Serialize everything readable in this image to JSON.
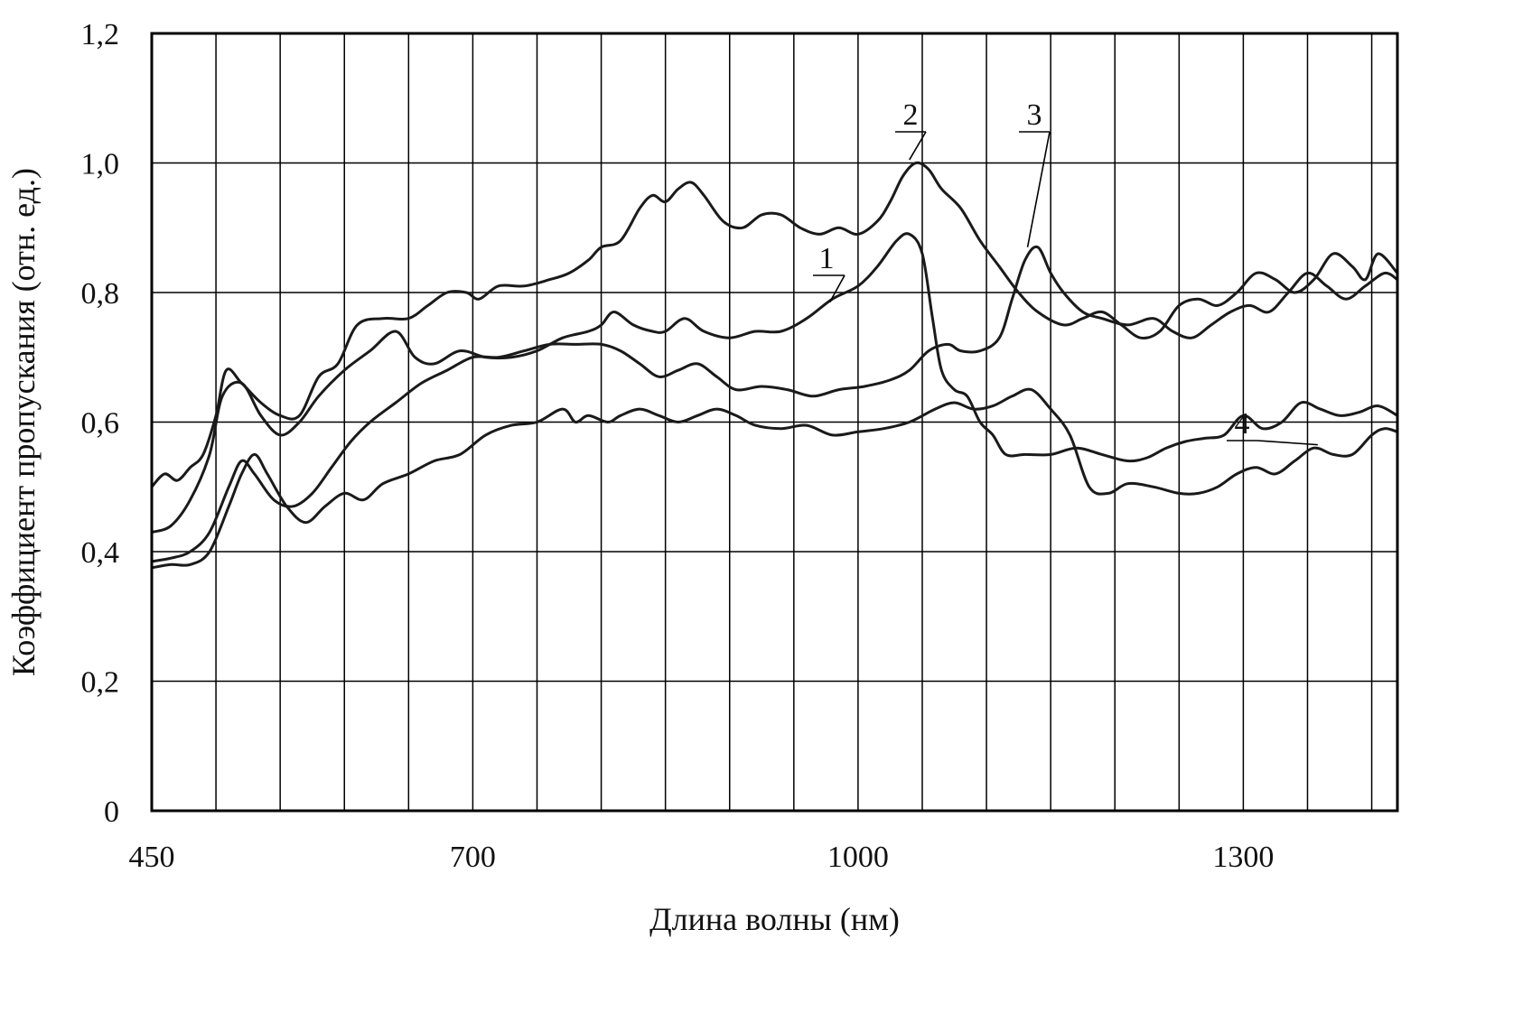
{
  "chart_data": {
    "type": "line",
    "title": "",
    "xlabel": "Длина волны (нм)",
    "ylabel": "Коэффициент пропускания (отн. ед.)",
    "xlim": [
      450,
      1420
    ],
    "ylim": [
      0,
      1.2
    ],
    "x_ticks": [
      450,
      700,
      1000,
      1300
    ],
    "x_tick_labels": [
      "450",
      "700",
      "1000",
      "1300"
    ],
    "x_grid": [
      450,
      500,
      550,
      600,
      650,
      700,
      750,
      800,
      850,
      900,
      950,
      1000,
      1050,
      1100,
      1150,
      1200,
      1250,
      1300,
      1350,
      1400
    ],
    "y_ticks": [
      0,
      0.2,
      0.4,
      0.6,
      0.8,
      1.0,
      1.2
    ],
    "y_tick_labels": [
      "0",
      "0,2",
      "0,4",
      "0,6",
      "0,8",
      "1,0",
      "1,2"
    ],
    "grid": true,
    "legend": "none",
    "series": [
      {
        "name": "1",
        "points": [
          [
            450,
            0.43
          ],
          [
            465,
            0.44
          ],
          [
            480,
            0.48
          ],
          [
            495,
            0.55
          ],
          [
            505,
            0.64
          ],
          [
            520,
            0.66
          ],
          [
            535,
            0.61
          ],
          [
            550,
            0.58
          ],
          [
            565,
            0.6
          ],
          [
            580,
            0.64
          ],
          [
            600,
            0.68
          ],
          [
            620,
            0.71
          ],
          [
            640,
            0.74
          ],
          [
            655,
            0.7
          ],
          [
            670,
            0.69
          ],
          [
            690,
            0.71
          ],
          [
            710,
            0.7
          ],
          [
            730,
            0.7
          ],
          [
            750,
            0.71
          ],
          [
            770,
            0.73
          ],
          [
            790,
            0.74
          ],
          [
            800,
            0.75
          ],
          [
            810,
            0.77
          ],
          [
            825,
            0.75
          ],
          [
            840,
            0.74
          ],
          [
            850,
            0.74
          ],
          [
            865,
            0.76
          ],
          [
            880,
            0.74
          ],
          [
            900,
            0.73
          ],
          [
            920,
            0.74
          ],
          [
            940,
            0.74
          ],
          [
            960,
            0.76
          ],
          [
            980,
            0.79
          ],
          [
            1000,
            0.81
          ],
          [
            1015,
            0.84
          ],
          [
            1030,
            0.88
          ],
          [
            1040,
            0.89
          ],
          [
            1050,
            0.86
          ],
          [
            1058,
            0.76
          ],
          [
            1065,
            0.68
          ],
          [
            1075,
            0.65
          ],
          [
            1085,
            0.64
          ],
          [
            1095,
            0.6
          ],
          [
            1105,
            0.58
          ],
          [
            1115,
            0.55
          ],
          [
            1130,
            0.55
          ],
          [
            1150,
            0.55
          ],
          [
            1170,
            0.56
          ],
          [
            1190,
            0.55
          ],
          [
            1210,
            0.54
          ],
          [
            1225,
            0.545
          ],
          [
            1240,
            0.56
          ],
          [
            1255,
            0.57
          ],
          [
            1270,
            0.575
          ],
          [
            1285,
            0.58
          ],
          [
            1300,
            0.61
          ],
          [
            1315,
            0.59
          ],
          [
            1330,
            0.6
          ],
          [
            1345,
            0.63
          ],
          [
            1360,
            0.62
          ],
          [
            1375,
            0.61
          ],
          [
            1390,
            0.615
          ],
          [
            1405,
            0.625
          ],
          [
            1420,
            0.61
          ]
        ]
      },
      {
        "name": "2",
        "points": [
          [
            450,
            0.5
          ],
          [
            460,
            0.52
          ],
          [
            470,
            0.51
          ],
          [
            480,
            0.53
          ],
          [
            490,
            0.55
          ],
          [
            500,
            0.61
          ],
          [
            508,
            0.68
          ],
          [
            520,
            0.66
          ],
          [
            535,
            0.63
          ],
          [
            550,
            0.61
          ],
          [
            565,
            0.61
          ],
          [
            580,
            0.67
          ],
          [
            595,
            0.69
          ],
          [
            610,
            0.75
          ],
          [
            630,
            0.76
          ],
          [
            650,
            0.76
          ],
          [
            665,
            0.78
          ],
          [
            680,
            0.8
          ],
          [
            695,
            0.8
          ],
          [
            705,
            0.79
          ],
          [
            720,
            0.81
          ],
          [
            740,
            0.81
          ],
          [
            760,
            0.82
          ],
          [
            775,
            0.83
          ],
          [
            790,
            0.85
          ],
          [
            800,
            0.87
          ],
          [
            815,
            0.88
          ],
          [
            830,
            0.93
          ],
          [
            840,
            0.95
          ],
          [
            850,
            0.94
          ],
          [
            860,
            0.96
          ],
          [
            870,
            0.97
          ],
          [
            880,
            0.95
          ],
          [
            895,
            0.91
          ],
          [
            910,
            0.9
          ],
          [
            925,
            0.92
          ],
          [
            940,
            0.92
          ],
          [
            955,
            0.9
          ],
          [
            970,
            0.89
          ],
          [
            985,
            0.9
          ],
          [
            1000,
            0.89
          ],
          [
            1015,
            0.91
          ],
          [
            1025,
            0.94
          ],
          [
            1035,
            0.98
          ],
          [
            1045,
            1.0
          ],
          [
            1055,
            0.99
          ],
          [
            1065,
            0.96
          ],
          [
            1080,
            0.93
          ],
          [
            1095,
            0.88
          ],
          [
            1110,
            0.84
          ],
          [
            1125,
            0.8
          ],
          [
            1140,
            0.77
          ],
          [
            1160,
            0.75
          ],
          [
            1175,
            0.76
          ],
          [
            1190,
            0.77
          ],
          [
            1205,
            0.75
          ],
          [
            1220,
            0.73
          ],
          [
            1235,
            0.74
          ],
          [
            1250,
            0.78
          ],
          [
            1265,
            0.79
          ],
          [
            1280,
            0.78
          ],
          [
            1295,
            0.8
          ],
          [
            1310,
            0.83
          ],
          [
            1325,
            0.82
          ],
          [
            1340,
            0.8
          ],
          [
            1355,
            0.82
          ],
          [
            1370,
            0.86
          ],
          [
            1385,
            0.84
          ],
          [
            1395,
            0.82
          ],
          [
            1405,
            0.86
          ],
          [
            1420,
            0.83
          ]
        ]
      },
      {
        "name": "3",
        "points": [
          [
            450,
            0.385
          ],
          [
            465,
            0.39
          ],
          [
            480,
            0.4
          ],
          [
            495,
            0.43
          ],
          [
            510,
            0.5
          ],
          [
            520,
            0.54
          ],
          [
            530,
            0.52
          ],
          [
            545,
            0.48
          ],
          [
            560,
            0.47
          ],
          [
            575,
            0.49
          ],
          [
            590,
            0.53
          ],
          [
            605,
            0.57
          ],
          [
            620,
            0.6
          ],
          [
            640,
            0.63
          ],
          [
            660,
            0.66
          ],
          [
            680,
            0.68
          ],
          [
            700,
            0.7
          ],
          [
            720,
            0.7
          ],
          [
            740,
            0.71
          ],
          [
            760,
            0.72
          ],
          [
            780,
            0.72
          ],
          [
            800,
            0.72
          ],
          [
            815,
            0.71
          ],
          [
            830,
            0.69
          ],
          [
            845,
            0.67
          ],
          [
            860,
            0.68
          ],
          [
            875,
            0.69
          ],
          [
            890,
            0.67
          ],
          [
            905,
            0.65
          ],
          [
            925,
            0.655
          ],
          [
            945,
            0.65
          ],
          [
            965,
            0.64
          ],
          [
            985,
            0.65
          ],
          [
            1005,
            0.655
          ],
          [
            1025,
            0.665
          ],
          [
            1040,
            0.68
          ],
          [
            1055,
            0.71
          ],
          [
            1070,
            0.72
          ],
          [
            1080,
            0.71
          ],
          [
            1095,
            0.71
          ],
          [
            1110,
            0.73
          ],
          [
            1120,
            0.79
          ],
          [
            1130,
            0.85
          ],
          [
            1140,
            0.87
          ],
          [
            1150,
            0.83
          ],
          [
            1160,
            0.8
          ],
          [
            1175,
            0.77
          ],
          [
            1190,
            0.76
          ],
          [
            1210,
            0.75
          ],
          [
            1230,
            0.76
          ],
          [
            1245,
            0.74
          ],
          [
            1260,
            0.73
          ],
          [
            1275,
            0.75
          ],
          [
            1290,
            0.77
          ],
          [
            1305,
            0.78
          ],
          [
            1320,
            0.77
          ],
          [
            1335,
            0.8
          ],
          [
            1350,
            0.83
          ],
          [
            1365,
            0.81
          ],
          [
            1380,
            0.79
          ],
          [
            1395,
            0.81
          ],
          [
            1410,
            0.83
          ],
          [
            1420,
            0.82
          ]
        ]
      },
      {
        "name": "4",
        "points": [
          [
            450,
            0.375
          ],
          [
            465,
            0.38
          ],
          [
            480,
            0.38
          ],
          [
            495,
            0.4
          ],
          [
            510,
            0.47
          ],
          [
            520,
            0.52
          ],
          [
            530,
            0.55
          ],
          [
            540,
            0.52
          ],
          [
            555,
            0.47
          ],
          [
            570,
            0.445
          ],
          [
            585,
            0.47
          ],
          [
            600,
            0.49
          ],
          [
            615,
            0.48
          ],
          [
            630,
            0.505
          ],
          [
            650,
            0.52
          ],
          [
            670,
            0.54
          ],
          [
            690,
            0.55
          ],
          [
            710,
            0.58
          ],
          [
            730,
            0.595
          ],
          [
            750,
            0.6
          ],
          [
            770,
            0.62
          ],
          [
            780,
            0.6
          ],
          [
            790,
            0.61
          ],
          [
            805,
            0.6
          ],
          [
            815,
            0.61
          ],
          [
            830,
            0.62
          ],
          [
            845,
            0.61
          ],
          [
            860,
            0.6
          ],
          [
            875,
            0.61
          ],
          [
            890,
            0.62
          ],
          [
            905,
            0.61
          ],
          [
            920,
            0.595
          ],
          [
            940,
            0.59
          ],
          [
            960,
            0.595
          ],
          [
            980,
            0.58
          ],
          [
            1000,
            0.585
          ],
          [
            1020,
            0.59
          ],
          [
            1040,
            0.6
          ],
          [
            1060,
            0.62
          ],
          [
            1075,
            0.63
          ],
          [
            1090,
            0.62
          ],
          [
            1105,
            0.625
          ],
          [
            1120,
            0.64
          ],
          [
            1135,
            0.65
          ],
          [
            1150,
            0.62
          ],
          [
            1165,
            0.58
          ],
          [
            1180,
            0.5
          ],
          [
            1195,
            0.49
          ],
          [
            1210,
            0.505
          ],
          [
            1230,
            0.5
          ],
          [
            1250,
            0.49
          ],
          [
            1265,
            0.49
          ],
          [
            1280,
            0.5
          ],
          [
            1295,
            0.52
          ],
          [
            1310,
            0.53
          ],
          [
            1325,
            0.52
          ],
          [
            1340,
            0.54
          ],
          [
            1355,
            0.56
          ],
          [
            1370,
            0.55
          ],
          [
            1385,
            0.55
          ],
          [
            1400,
            0.58
          ],
          [
            1410,
            0.59
          ],
          [
            1420,
            0.585
          ]
        ]
      }
    ],
    "annotations": [
      {
        "text": "1",
        "anchor": [
          978,
          0.785
        ]
      },
      {
        "text": "2",
        "anchor": [
          1040,
          1.005
        ]
      },
      {
        "text": "3",
        "anchor": [
          1132,
          0.87
        ]
      },
      {
        "text": "4",
        "anchor": [
          1358,
          0.565
        ]
      }
    ]
  }
}
